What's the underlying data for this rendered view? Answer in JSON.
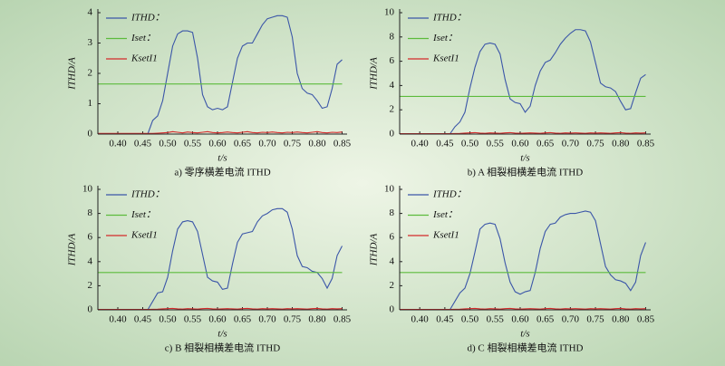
{
  "chart_data": [
    {
      "type": "line",
      "caption": "a) 零序横差电流 ITHD",
      "xlabel": "t/s",
      "ylabel": "ITHD/A",
      "x": [
        0.36,
        0.37,
        0.38,
        0.39,
        0.4,
        0.41,
        0.42,
        0.43,
        0.44,
        0.45,
        0.46,
        0.47,
        0.48,
        0.49,
        0.5,
        0.51,
        0.52,
        0.53,
        0.54,
        0.55,
        0.56,
        0.57,
        0.58,
        0.59,
        0.6,
        0.61,
        0.62,
        0.63,
        0.64,
        0.65,
        0.66,
        0.67,
        0.68,
        0.69,
        0.7,
        0.71,
        0.72,
        0.73,
        0.74,
        0.75,
        0.76,
        0.77,
        0.78,
        0.79,
        0.8,
        0.81,
        0.82,
        0.83,
        0.84,
        0.85
      ],
      "series": [
        {
          "name": "ITHD：",
          "color": "#3b56a8",
          "values": [
            null,
            null,
            null,
            null,
            null,
            null,
            null,
            null,
            null,
            null,
            0,
            0.45,
            0.6,
            1.1,
            2.0,
            2.9,
            3.3,
            3.4,
            3.4,
            3.35,
            2.5,
            1.3,
            0.9,
            0.8,
            0.85,
            0.8,
            0.9,
            1.7,
            2.5,
            2.9,
            3.0,
            3.0,
            3.3,
            3.6,
            3.8,
            3.85,
            3.9,
            3.9,
            3.85,
            3.2,
            2.0,
            1.5,
            1.35,
            1.3,
            1.1,
            0.85,
            0.9,
            1.5,
            2.3,
            2.45
          ]
        },
        {
          "name": "Iset：",
          "color": "#5cbb3c",
          "values": [
            1.65,
            1.65,
            1.65,
            1.65,
            1.65,
            1.65,
            1.65,
            1.65,
            1.65,
            1.65,
            1.65,
            1.65,
            1.65,
            1.65,
            1.65,
            1.65,
            1.65,
            1.65,
            1.65,
            1.65,
            1.65,
            1.65,
            1.65,
            1.65,
            1.65,
            1.65,
            1.65,
            1.65,
            1.65,
            1.65,
            1.65,
            1.65,
            1.65,
            1.65,
            1.65,
            1.65,
            1.65,
            1.65,
            1.65,
            1.65,
            1.65,
            1.65,
            1.65,
            1.65,
            1.65,
            1.65,
            1.65,
            1.65,
            1.65,
            1.65
          ]
        },
        {
          "name": "KsetI1",
          "color": "#d42a2a",
          "values": [
            0.02,
            0.02,
            0.02,
            0.02,
            0.02,
            0.02,
            0.02,
            0.02,
            0.02,
            0.02,
            0.02,
            0.02,
            0.03,
            0.04,
            0.05,
            0.08,
            0.06,
            0.04,
            0.07,
            0.05,
            0.04,
            0.06,
            0.08,
            0.05,
            0.04,
            0.05,
            0.07,
            0.05,
            0.04,
            0.06,
            0.08,
            0.05,
            0.04,
            0.06,
            0.05,
            0.07,
            0.05,
            0.04,
            0.06,
            0.05,
            0.07,
            0.05,
            0.04,
            0.06,
            0.08,
            0.05,
            0.04,
            0.06,
            0.05,
            0.07
          ]
        }
      ],
      "xlim": [
        0.36,
        0.86
      ],
      "ylim": [
        0,
        4
      ],
      "xticks": [
        {
          "value": 0.4,
          "label": "0.40"
        },
        {
          "value": 0.45,
          "label": "0.45"
        },
        {
          "value": 0.5,
          "label": "0.50"
        },
        {
          "value": 0.55,
          "label": "0.55"
        },
        {
          "value": 0.6,
          "label": "0.60"
        },
        {
          "value": 0.65,
          "label": "0.65"
        },
        {
          "value": 0.7,
          "label": "0.70"
        },
        {
          "value": 0.75,
          "label": "0.75"
        },
        {
          "value": 0.8,
          "label": "0.80"
        },
        {
          "value": 0.85,
          "label": "0.85"
        }
      ],
      "yticks": [
        0,
        1,
        2,
        3,
        4
      ]
    },
    {
      "type": "line",
      "caption": "b) A 相裂相横差电流 ITHD",
      "xlabel": "t/s",
      "ylabel": "ITHD/A",
      "x": [
        0.36,
        0.37,
        0.38,
        0.39,
        0.4,
        0.41,
        0.42,
        0.43,
        0.44,
        0.45,
        0.46,
        0.47,
        0.48,
        0.49,
        0.5,
        0.51,
        0.52,
        0.53,
        0.54,
        0.55,
        0.56,
        0.57,
        0.58,
        0.59,
        0.6,
        0.61,
        0.62,
        0.63,
        0.64,
        0.65,
        0.66,
        0.67,
        0.68,
        0.69,
        0.7,
        0.71,
        0.72,
        0.73,
        0.74,
        0.75,
        0.76,
        0.77,
        0.78,
        0.79,
        0.8,
        0.81,
        0.82,
        0.83,
        0.84,
        0.85
      ],
      "series": [
        {
          "name": "ITHD：",
          "color": "#3b56a8",
          "values": [
            null,
            null,
            null,
            null,
            null,
            null,
            null,
            null,
            null,
            null,
            0,
            0.6,
            1.0,
            1.8,
            3.8,
            5.5,
            6.8,
            7.4,
            7.5,
            7.4,
            6.6,
            4.5,
            2.9,
            2.6,
            2.5,
            1.8,
            2.3,
            4.0,
            5.2,
            5.9,
            6.1,
            6.7,
            7.4,
            7.9,
            8.3,
            8.6,
            8.6,
            8.5,
            7.6,
            5.9,
            4.2,
            3.9,
            3.8,
            3.5,
            2.7,
            2.0,
            2.1,
            3.4,
            4.6,
            4.9
          ]
        },
        {
          "name": "Iset：",
          "color": "#5cbb3c",
          "values": [
            3.1,
            3.1,
            3.1,
            3.1,
            3.1,
            3.1,
            3.1,
            3.1,
            3.1,
            3.1,
            3.1,
            3.1,
            3.1,
            3.1,
            3.1,
            3.1,
            3.1,
            3.1,
            3.1,
            3.1,
            3.1,
            3.1,
            3.1,
            3.1,
            3.1,
            3.1,
            3.1,
            3.1,
            3.1,
            3.1,
            3.1,
            3.1,
            3.1,
            3.1,
            3.1,
            3.1,
            3.1,
            3.1,
            3.1,
            3.1,
            3.1,
            3.1,
            3.1,
            3.1,
            3.1,
            3.1,
            3.1,
            3.1,
            3.1,
            3.1
          ]
        },
        {
          "name": "KsetI1",
          "color": "#d42a2a",
          "values": [
            0.03,
            0.03,
            0.03,
            0.03,
            0.03,
            0.03,
            0.03,
            0.03,
            0.03,
            0.03,
            0.03,
            0.04,
            0.05,
            0.08,
            0.1,
            0.12,
            0.08,
            0.06,
            0.1,
            0.08,
            0.06,
            0.1,
            0.12,
            0.08,
            0.06,
            0.08,
            0.1,
            0.08,
            0.06,
            0.1,
            0.12,
            0.08,
            0.06,
            0.1,
            0.08,
            0.1,
            0.08,
            0.06,
            0.1,
            0.08,
            0.1,
            0.08,
            0.06,
            0.1,
            0.12,
            0.08,
            0.06,
            0.1,
            0.08,
            0.1
          ]
        }
      ],
      "xlim": [
        0.36,
        0.86
      ],
      "ylim": [
        0,
        10
      ],
      "xticks": [
        {
          "value": 0.4,
          "label": "0.40"
        },
        {
          "value": 0.45,
          "label": "0.45"
        },
        {
          "value": 0.5,
          "label": "0.50"
        },
        {
          "value": 0.55,
          "label": "0.55"
        },
        {
          "value": 0.6,
          "label": "0.60"
        },
        {
          "value": 0.65,
          "label": "0.65"
        },
        {
          "value": 0.7,
          "label": "0.70"
        },
        {
          "value": 0.75,
          "label": "0.75"
        },
        {
          "value": 0.8,
          "label": "0.80"
        },
        {
          "value": 0.85,
          "label": "0.85"
        }
      ],
      "yticks": [
        0,
        2,
        4,
        6,
        8,
        10
      ]
    },
    {
      "type": "line",
      "caption": "c) B 相裂相横差电流 ITHD",
      "xlabel": "t/s",
      "ylabel": "ITHD/A",
      "x": [
        0.36,
        0.37,
        0.38,
        0.39,
        0.4,
        0.41,
        0.42,
        0.43,
        0.44,
        0.45,
        0.46,
        0.47,
        0.48,
        0.49,
        0.5,
        0.51,
        0.52,
        0.53,
        0.54,
        0.55,
        0.56,
        0.57,
        0.58,
        0.59,
        0.6,
        0.61,
        0.62,
        0.63,
        0.64,
        0.65,
        0.66,
        0.67,
        0.68,
        0.69,
        0.7,
        0.71,
        0.72,
        0.73,
        0.74,
        0.75,
        0.76,
        0.77,
        0.78,
        0.79,
        0.8,
        0.81,
        0.82,
        0.83,
        0.84,
        0.85
      ],
      "series": [
        {
          "name": "ITHD：",
          "color": "#3b56a8",
          "values": [
            null,
            null,
            null,
            null,
            null,
            null,
            null,
            null,
            null,
            null,
            0,
            0.7,
            1.4,
            1.5,
            2.7,
            4.9,
            6.7,
            7.3,
            7.4,
            7.3,
            6.5,
            4.6,
            2.7,
            2.4,
            2.3,
            1.7,
            1.8,
            3.8,
            5.6,
            6.3,
            6.4,
            6.5,
            7.3,
            7.8,
            8.0,
            8.3,
            8.4,
            8.4,
            8.1,
            6.7,
            4.5,
            3.6,
            3.5,
            3.2,
            3.1,
            2.6,
            1.8,
            2.6,
            4.5,
            5.3
          ]
        },
        {
          "name": "Iset：",
          "color": "#5cbb3c",
          "values": [
            3.1,
            3.1,
            3.1,
            3.1,
            3.1,
            3.1,
            3.1,
            3.1,
            3.1,
            3.1,
            3.1,
            3.1,
            3.1,
            3.1,
            3.1,
            3.1,
            3.1,
            3.1,
            3.1,
            3.1,
            3.1,
            3.1,
            3.1,
            3.1,
            3.1,
            3.1,
            3.1,
            3.1,
            3.1,
            3.1,
            3.1,
            3.1,
            3.1,
            3.1,
            3.1,
            3.1,
            3.1,
            3.1,
            3.1,
            3.1,
            3.1,
            3.1,
            3.1,
            3.1,
            3.1,
            3.1,
            3.1,
            3.1,
            3.1,
            3.1
          ]
        },
        {
          "name": "KsetI1",
          "color": "#d42a2a",
          "values": [
            0.03,
            0.03,
            0.03,
            0.03,
            0.03,
            0.03,
            0.03,
            0.03,
            0.03,
            0.03,
            0.03,
            0.04,
            0.05,
            0.08,
            0.1,
            0.12,
            0.08,
            0.06,
            0.1,
            0.08,
            0.06,
            0.1,
            0.12,
            0.08,
            0.06,
            0.08,
            0.1,
            0.08,
            0.06,
            0.1,
            0.12,
            0.08,
            0.06,
            0.1,
            0.08,
            0.1,
            0.08,
            0.06,
            0.1,
            0.08,
            0.1,
            0.08,
            0.06,
            0.1,
            0.12,
            0.08,
            0.06,
            0.1,
            0.08,
            0.1
          ]
        }
      ],
      "xlim": [
        0.36,
        0.86
      ],
      "ylim": [
        0,
        10
      ],
      "xticks": [
        {
          "value": 0.4,
          "label": "0.40"
        },
        {
          "value": 0.45,
          "label": "0.45"
        },
        {
          "value": 0.5,
          "label": "0.50"
        },
        {
          "value": 0.55,
          "label": "0.55"
        },
        {
          "value": 0.6,
          "label": "0.60"
        },
        {
          "value": 0.65,
          "label": "0.65"
        },
        {
          "value": 0.7,
          "label": "0.70"
        },
        {
          "value": 0.75,
          "label": "0.75"
        },
        {
          "value": 0.8,
          "label": "0.80"
        },
        {
          "value": 0.85,
          "label": "0.85"
        }
      ],
      "yticks": [
        0,
        2,
        4,
        6,
        8,
        10
      ]
    },
    {
      "type": "line",
      "caption": "d) C 相裂相横差电流 ITHD",
      "xlabel": "t/s",
      "ylabel": "ITHD/A",
      "x": [
        0.36,
        0.37,
        0.38,
        0.39,
        0.4,
        0.41,
        0.42,
        0.43,
        0.44,
        0.45,
        0.46,
        0.47,
        0.48,
        0.49,
        0.5,
        0.51,
        0.52,
        0.53,
        0.54,
        0.55,
        0.56,
        0.57,
        0.58,
        0.59,
        0.6,
        0.61,
        0.62,
        0.63,
        0.64,
        0.65,
        0.66,
        0.67,
        0.68,
        0.69,
        0.7,
        0.71,
        0.72,
        0.73,
        0.74,
        0.75,
        0.76,
        0.77,
        0.78,
        0.79,
        0.8,
        0.81,
        0.82,
        0.83,
        0.84,
        0.85
      ],
      "series": [
        {
          "name": "ITHD：",
          "color": "#3b56a8",
          "values": [
            null,
            null,
            null,
            null,
            null,
            null,
            null,
            null,
            null,
            null,
            0,
            0.7,
            1.4,
            1.8,
            3.0,
            4.8,
            6.7,
            7.1,
            7.2,
            7.1,
            5.9,
            3.9,
            2.3,
            1.5,
            1.3,
            1.5,
            1.6,
            3.1,
            5.1,
            6.5,
            7.1,
            7.2,
            7.7,
            7.9,
            8.0,
            8.0,
            8.1,
            8.2,
            8.1,
            7.4,
            5.5,
            3.6,
            2.9,
            2.5,
            2.4,
            2.2,
            1.6,
            2.3,
            4.5,
            5.6
          ]
        },
        {
          "name": "Iset：",
          "color": "#5cbb3c",
          "values": [
            3.1,
            3.1,
            3.1,
            3.1,
            3.1,
            3.1,
            3.1,
            3.1,
            3.1,
            3.1,
            3.1,
            3.1,
            3.1,
            3.1,
            3.1,
            3.1,
            3.1,
            3.1,
            3.1,
            3.1,
            3.1,
            3.1,
            3.1,
            3.1,
            3.1,
            3.1,
            3.1,
            3.1,
            3.1,
            3.1,
            3.1,
            3.1,
            3.1,
            3.1,
            3.1,
            3.1,
            3.1,
            3.1,
            3.1,
            3.1,
            3.1,
            3.1,
            3.1,
            3.1,
            3.1,
            3.1,
            3.1,
            3.1,
            3.1,
            3.1
          ]
        },
        {
          "name": "KsetI1",
          "color": "#d42a2a",
          "values": [
            0.03,
            0.03,
            0.03,
            0.03,
            0.03,
            0.03,
            0.03,
            0.03,
            0.03,
            0.03,
            0.03,
            0.04,
            0.05,
            0.08,
            0.1,
            0.12,
            0.08,
            0.06,
            0.1,
            0.08,
            0.06,
            0.1,
            0.12,
            0.08,
            0.06,
            0.08,
            0.1,
            0.08,
            0.06,
            0.1,
            0.12,
            0.08,
            0.06,
            0.1,
            0.08,
            0.1,
            0.08,
            0.06,
            0.1,
            0.08,
            0.1,
            0.08,
            0.06,
            0.1,
            0.12,
            0.08,
            0.06,
            0.1,
            0.08,
            0.1
          ]
        }
      ],
      "xlim": [
        0.36,
        0.86
      ],
      "ylim": [
        0,
        10
      ],
      "xticks": [
        {
          "value": 0.4,
          "label": "0.40"
        },
        {
          "value": 0.45,
          "label": "0.45"
        },
        {
          "value": 0.5,
          "label": "0.50"
        },
        {
          "value": 0.55,
          "label": "0.55"
        },
        {
          "value": 0.6,
          "label": "0.60"
        },
        {
          "value": 0.65,
          "label": "0.65"
        },
        {
          "value": 0.7,
          "label": "0.70"
        },
        {
          "value": 0.75,
          "label": "0.75"
        },
        {
          "value": 0.8,
          "label": "0.80"
        },
        {
          "value": 0.85,
          "label": "0.85"
        }
      ],
      "yticks": [
        0,
        2,
        4,
        6,
        8,
        10
      ]
    }
  ]
}
